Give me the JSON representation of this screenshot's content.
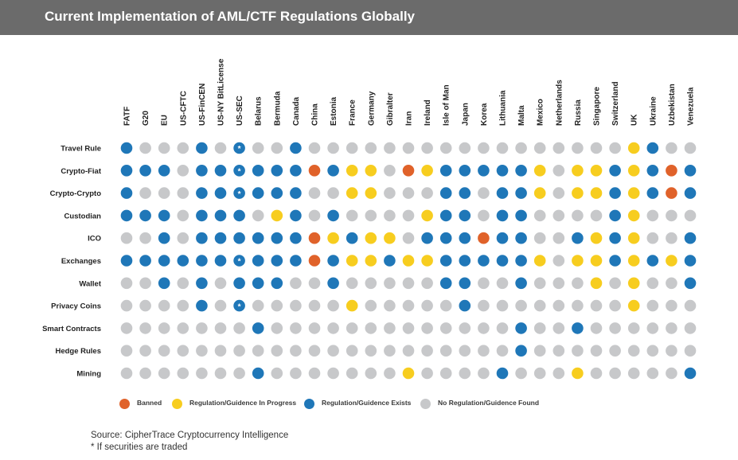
{
  "header": {
    "title": "Current Implementation of AML/CTF Regulations Globally"
  },
  "colors": {
    "header_bg": "#6b6b6b",
    "banned": "#e0622a",
    "in_progress": "#f7cd1f",
    "exists": "#1f77b8",
    "none": "#c7c8ca"
  },
  "chart_data": {
    "type": "dot-matrix",
    "title": "Current Implementation of AML/CTF Regulations Globally",
    "columns": [
      "FATF",
      "G20",
      "EU",
      "US-CFTC",
      "US-FinCEN",
      "US-NY BitLicense",
      "US-SEC",
      "Belarus",
      "Bermuda",
      "Canada",
      "China",
      "Estonia",
      "France",
      "Germany",
      "Gibralter",
      "Iran",
      "Ireland",
      "Isle of Man",
      "Japan",
      "Korea",
      "Lithuania",
      "Malta",
      "Mexico",
      "Netherlands",
      "Russia",
      "Singapore",
      "Switzerland",
      "UK",
      "Ukraine",
      "Uzbekistan",
      "Venezuela"
    ],
    "rows": [
      "Travel Rule",
      "Crypto-Fiat",
      "Crypto-Crypto",
      "Custodian",
      "ICO",
      "Exchanges",
      "Wallet",
      "Privacy Coins",
      "Smart Contracts",
      "Hedge Rules",
      "Mining"
    ],
    "status_codes": {
      "B": "Banned",
      "P": "Regulation/Guidence In Progress",
      "E": "Regulation/Guidence Exists",
      "N": "No Regulation/Guidence Found"
    },
    "values": [
      [
        "E",
        "N",
        "N",
        "N",
        "E",
        "N",
        "E*",
        "N",
        "N",
        "E",
        "N",
        "N",
        "N",
        "N",
        "N",
        "N",
        "N",
        "N",
        "N",
        "N",
        "N",
        "N",
        "N",
        "N",
        "N",
        "N",
        "N",
        "P",
        "E",
        "N",
        "N"
      ],
      [
        "E",
        "E",
        "E",
        "N",
        "E",
        "E",
        "E*",
        "E",
        "E",
        "E",
        "B",
        "E",
        "P",
        "P",
        "N",
        "B",
        "P",
        "E",
        "E",
        "E",
        "E",
        "E",
        "P",
        "N",
        "P",
        "P",
        "E",
        "P",
        "E",
        "B",
        "E"
      ],
      [
        "E",
        "N",
        "N",
        "N",
        "E",
        "E",
        "E*",
        "E",
        "E",
        "E",
        "N",
        "N",
        "P",
        "P",
        "N",
        "N",
        "N",
        "E",
        "E",
        "N",
        "E",
        "E",
        "P",
        "N",
        "P",
        "P",
        "E",
        "P",
        "E",
        "B",
        "E"
      ],
      [
        "E",
        "E",
        "E",
        "N",
        "E",
        "E",
        "E",
        "N",
        "P",
        "E",
        "N",
        "E",
        "N",
        "N",
        "N",
        "N",
        "P",
        "E",
        "E",
        "N",
        "E",
        "E",
        "N",
        "N",
        "N",
        "N",
        "E",
        "P",
        "N",
        "N",
        "N"
      ],
      [
        "N",
        "N",
        "E",
        "N",
        "E",
        "E",
        "E",
        "E",
        "E",
        "E",
        "B",
        "P",
        "E",
        "P",
        "P",
        "N",
        "E",
        "E",
        "E",
        "B",
        "E",
        "E",
        "N",
        "N",
        "E",
        "P",
        "E",
        "P",
        "N",
        "N",
        "E"
      ],
      [
        "E",
        "E",
        "E",
        "E",
        "E",
        "E",
        "E*",
        "E",
        "E",
        "E",
        "B",
        "E",
        "P",
        "P",
        "E",
        "P",
        "P",
        "E",
        "E",
        "E",
        "E",
        "E",
        "P",
        "N",
        "P",
        "P",
        "E",
        "P",
        "E",
        "P",
        "E"
      ],
      [
        "N",
        "N",
        "E",
        "N",
        "E",
        "N",
        "E",
        "E",
        "E",
        "N",
        "N",
        "E",
        "N",
        "N",
        "N",
        "N",
        "N",
        "E",
        "E",
        "N",
        "N",
        "E",
        "N",
        "N",
        "N",
        "P",
        "N",
        "P",
        "N",
        "N",
        "E"
      ],
      [
        "N",
        "N",
        "N",
        "N",
        "E",
        "N",
        "E*",
        "N",
        "N",
        "N",
        "N",
        "N",
        "P",
        "N",
        "N",
        "N",
        "N",
        "N",
        "E",
        "N",
        "N",
        "N",
        "N",
        "N",
        "N",
        "N",
        "N",
        "P",
        "N",
        "N",
        "N"
      ],
      [
        "N",
        "N",
        "N",
        "N",
        "N",
        "N",
        "N",
        "E",
        "N",
        "N",
        "N",
        "N",
        "N",
        "N",
        "N",
        "N",
        "N",
        "N",
        "N",
        "N",
        "N",
        "E",
        "N",
        "N",
        "E",
        "N",
        "N",
        "N",
        "N",
        "N",
        "N"
      ],
      [
        "N",
        "N",
        "N",
        "N",
        "N",
        "N",
        "N",
        "N",
        "N",
        "N",
        "N",
        "N",
        "N",
        "N",
        "N",
        "N",
        "N",
        "N",
        "N",
        "N",
        "N",
        "E",
        "N",
        "N",
        "N",
        "N",
        "N",
        "N",
        "N",
        "N",
        "N"
      ],
      [
        "N",
        "N",
        "N",
        "N",
        "N",
        "N",
        "N",
        "E",
        "N",
        "N",
        "N",
        "N",
        "N",
        "N",
        "N",
        "P",
        "N",
        "N",
        "N",
        "N",
        "E",
        "N",
        "N",
        "N",
        "P",
        "N",
        "N",
        "N",
        "N",
        "N",
        "E"
      ]
    ],
    "asterisk_mark": "*"
  },
  "legend": [
    {
      "code": "B",
      "label": "Banned"
    },
    {
      "code": "P",
      "label": "Regulation/Guidence In Progress"
    },
    {
      "code": "E",
      "label": "Regulation/Guidence Exists"
    },
    {
      "code": "N",
      "label": "No Regulation/Guidence Found"
    }
  ],
  "footer": {
    "source": "Source: CipherTrace Cryptocurrency Intelligence",
    "note": "* If securities are traded"
  }
}
